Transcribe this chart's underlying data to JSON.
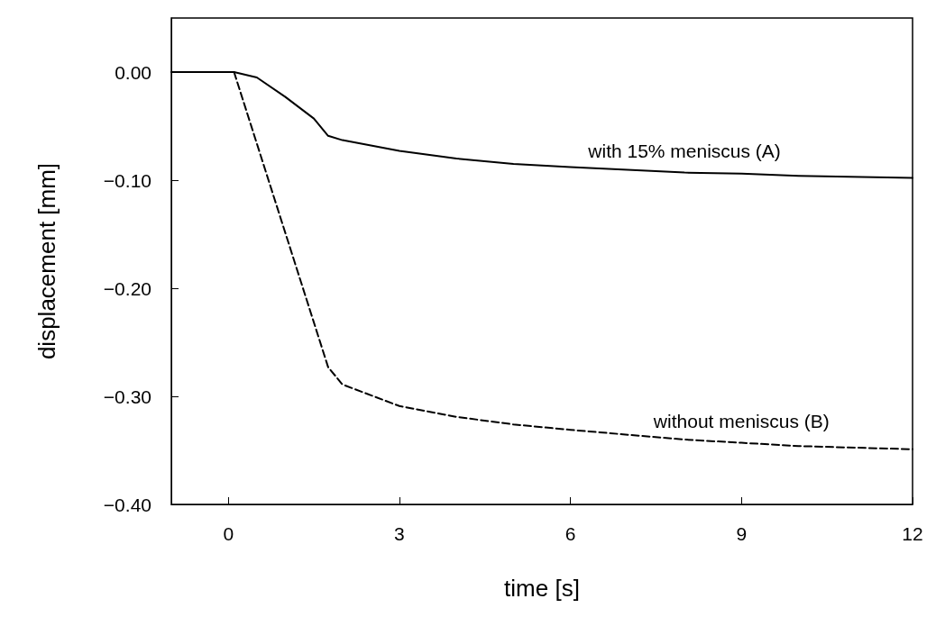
{
  "chart_data": {
    "type": "line",
    "xlabel": "time [s]",
    "ylabel": "displacement [mm]",
    "xlim": [
      -1,
      12
    ],
    "xticks": [
      0,
      3,
      6,
      9,
      12
    ],
    "ylim": [
      -0.4,
      0.05
    ],
    "yticks": [
      {
        "value": 0,
        "label": "0.00"
      },
      {
        "value": -0.1,
        "label": "−0.10"
      },
      {
        "value": -0.2,
        "label": "−0.20"
      },
      {
        "value": -0.3,
        "label": "−0.30"
      },
      {
        "value": -0.4,
        "label": "−0.40"
      }
    ],
    "grid": false,
    "legend": false,
    "marker": "none",
    "series": [
      {
        "name": "with 15% meniscus (A)",
        "color": "#000000",
        "line_style": "solid",
        "x": [
          -1,
          0.1,
          0.5,
          1,
          1.5,
          1.75,
          2,
          3,
          4,
          5,
          6,
          8,
          9,
          10,
          12
        ],
        "values": [
          0,
          0,
          -0.005,
          -0.023,
          -0.043,
          -0.059,
          -0.063,
          -0.073,
          -0.08,
          -0.085,
          -0.088,
          -0.093,
          -0.094,
          -0.096,
          -0.098
        ]
      },
      {
        "name": "without meniscus (B)",
        "color": "#000000",
        "line_style": "dashed",
        "x": [
          0.1,
          1.75,
          2,
          3,
          4,
          5,
          6,
          8,
          9,
          10,
          12
        ],
        "values": [
          0,
          -0.273,
          -0.289,
          -0.309,
          -0.319,
          -0.326,
          -0.331,
          -0.34,
          -0.343,
          -0.346,
          -0.349
        ]
      }
    ]
  }
}
